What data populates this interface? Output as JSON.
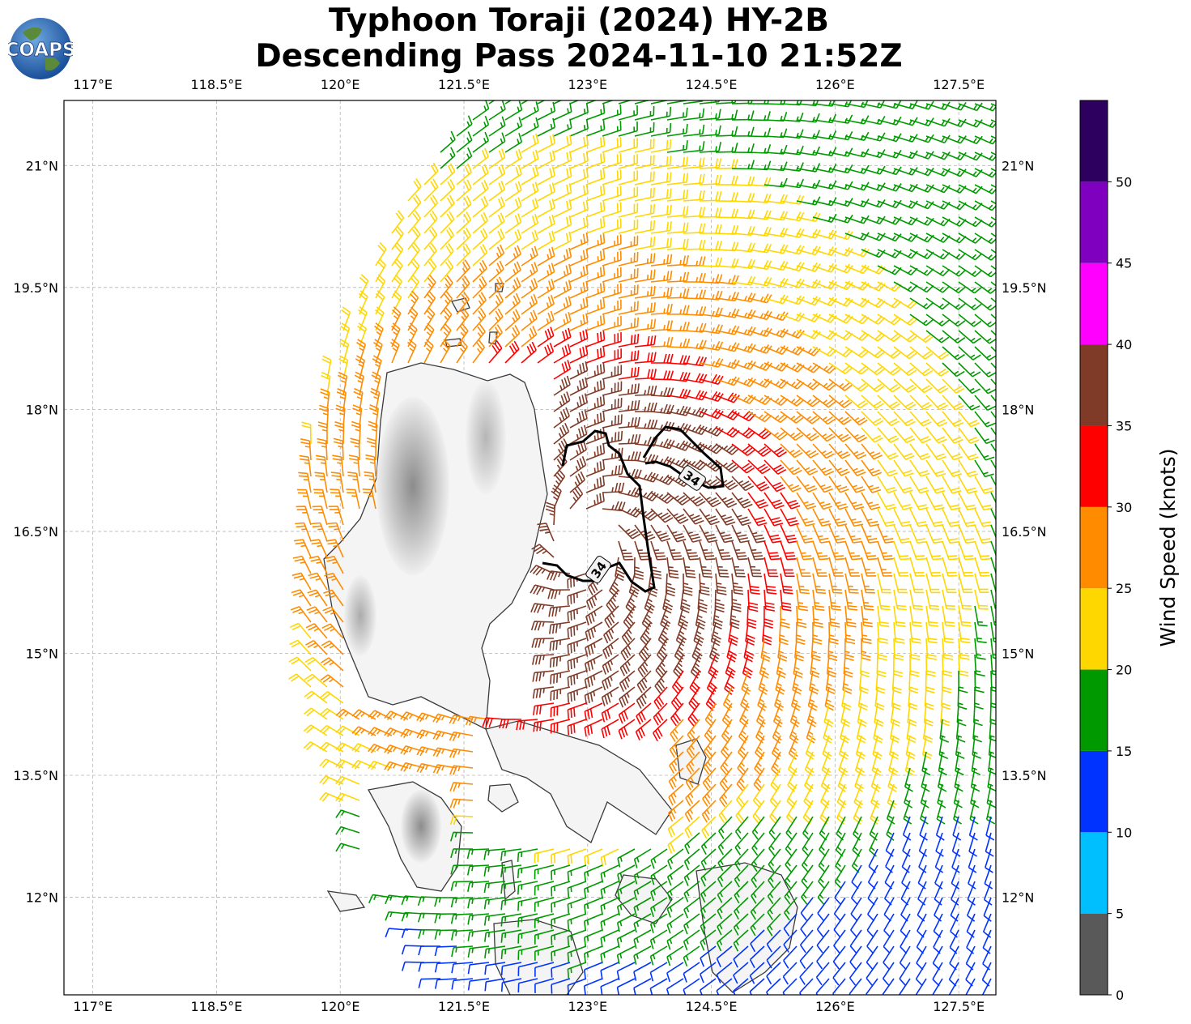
{
  "title_line1": "Typhoon Toraji (2024) HY-2B",
  "title_line2": "Descending Pass 2024-11-10 21:52Z",
  "logo_text": "COAPS",
  "map": {
    "lon_range": [
      116.65,
      127.95
    ],
    "lat_range": [
      10.8,
      21.8
    ],
    "lon_ticks": [
      "117°E",
      "118.5°E",
      "120°E",
      "121.5°E",
      "123°E",
      "124.5°E",
      "126°E",
      "127.5°E"
    ],
    "lon_tick_values": [
      117,
      118.5,
      120,
      121.5,
      123,
      124.5,
      126,
      127.5
    ],
    "lat_ticks": [
      "21°N",
      "19.5°N",
      "18°N",
      "16.5°N",
      "15°N",
      "13.5°N",
      "12°N"
    ],
    "lat_tick_values": [
      21,
      19.5,
      18,
      16.5,
      15,
      13.5,
      12
    ],
    "grid": true,
    "storm_center": [
      123.0,
      16.4
    ],
    "gale_contour_label": "34"
  },
  "colorbar": {
    "label": "Wind Speed (knots)",
    "ticks": [
      "0",
      "5",
      "10",
      "15",
      "20",
      "25",
      "30",
      "35",
      "40",
      "45",
      "50"
    ],
    "bins": [
      {
        "min": 0,
        "max": 5,
        "color": "#595959"
      },
      {
        "min": 5,
        "max": 10,
        "color": "#00bfff"
      },
      {
        "min": 10,
        "max": 15,
        "color": "#0033ff"
      },
      {
        "min": 15,
        "max": 20,
        "color": "#009900"
      },
      {
        "min": 20,
        "max": 25,
        "color": "#ffd700"
      },
      {
        "min": 25,
        "max": 30,
        "color": "#ff8c00"
      },
      {
        "min": 30,
        "max": 35,
        "color": "#ff0000"
      },
      {
        "min": 35,
        "max": 40,
        "color": "#7f3b28"
      },
      {
        "min": 40,
        "max": 45,
        "color": "#ff00ff"
      },
      {
        "min": 45,
        "max": 50,
        "color": "#8000c0"
      },
      {
        "min": 50,
        "max": 55,
        "color": "#2d0060"
      }
    ]
  }
}
